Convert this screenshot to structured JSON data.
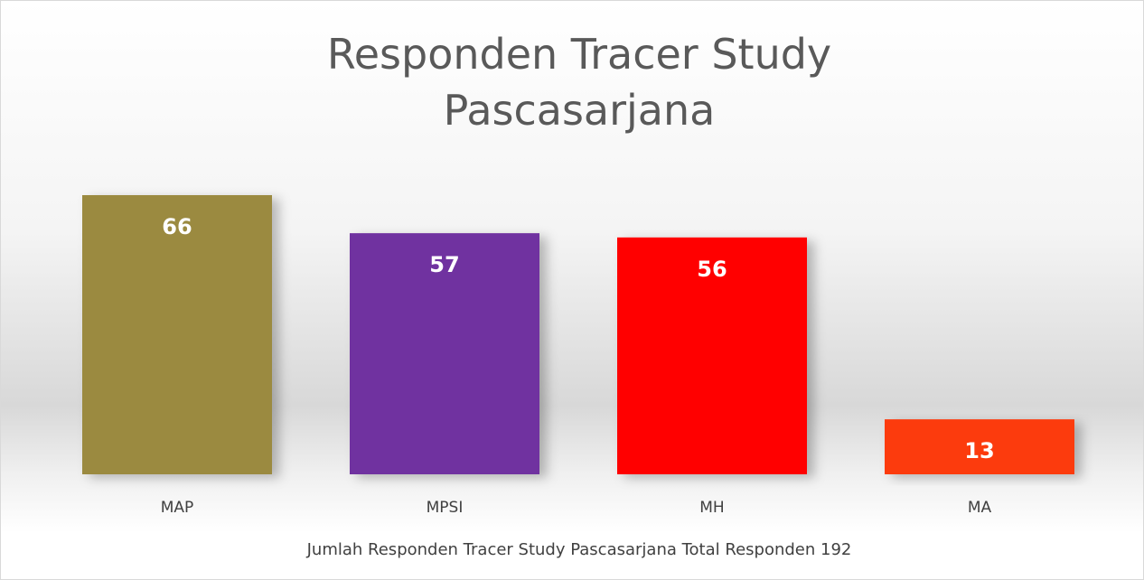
{
  "chart_data": {
    "type": "bar",
    "title": "Responden Tracer Study Pascasarjana",
    "categories": [
      "MAP",
      "MPSI",
      "MH",
      "MA"
    ],
    "values": [
      66,
      57,
      56,
      13
    ],
    "colors": [
      "#9b8a3f",
      "#7030a0",
      "#ff0000",
      "#fc3a0b"
    ],
    "x_label": "Jumlah Responden Tracer Study Pascasarjana Total Responden 192"
  }
}
